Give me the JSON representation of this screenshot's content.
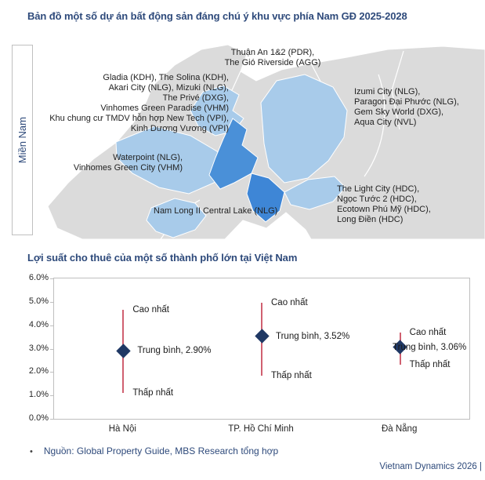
{
  "map_section": {
    "title": "Bản đồ một số dự án bất động sản đáng chú ý khu vực phía Nam GĐ 2025-2028",
    "region_label": "Miền Nam",
    "labels": {
      "thuan_an": {
        "lines": [
          "Thuận An 1&2 (PDR),",
          "The Gió Riverside (AGG)"
        ]
      },
      "west_hcm": {
        "lines": [
          "Gladia (KDH), The Solina (KDH),",
          "Akari City (NLG), Mizuki (NLG),",
          "The Privé (DXG),",
          "Vinhomes Green Paradise (VHM)",
          "Khu chung cư TMDV hỗn hợp New Tech (VPI),",
          "Kinh Dương Vương (VPI)"
        ]
      },
      "dong_nai": {
        "lines": [
          "Izumi City (NLG),",
          "Paragon Đại Phước (NLG),",
          "Gem Sky World (DXG),",
          "Aqua City (NVL)"
        ]
      },
      "long_an": {
        "lines": [
          "Waterpoint (NLG),",
          "Vinhomes Green City (VHM)"
        ]
      },
      "vung_tau": {
        "lines": [
          "The Light City (HDC),",
          "Ngọc Tước 2 (HDC),",
          "Ecotown Phú Mỹ (HDC),",
          "Long Điền (HDC)"
        ]
      },
      "nam_long": {
        "lines": [
          "Nam Long II Central Lake (NLG)"
        ]
      }
    },
    "map_colors": {
      "land": "#DBDBDB",
      "highlight_light": "#A8CBEA",
      "highlight_medium": "#4A90D8",
      "highlight_dark": "#3E86D6"
    }
  },
  "chart_data": {
    "type": "scatter",
    "title": "Lợi suất cho thuê của một số thành phố lớn tại Việt Nam",
    "categories": [
      "Hà Nội",
      "TP. Hồ Chí Minh",
      "Đà Nẵng"
    ],
    "ylabel": "",
    "xlabel": "",
    "ylim": [
      0,
      6
    ],
    "grid": false,
    "legend": false,
    "yticks": [
      {
        "value": 6,
        "label": "6.0%"
      },
      {
        "value": 5,
        "label": "5.0%"
      },
      {
        "value": 4,
        "label": "4.0%"
      },
      {
        "value": 3,
        "label": "3.0%"
      },
      {
        "value": 2,
        "label": "2.0%"
      },
      {
        "value": 1,
        "label": "1.0%"
      },
      {
        "value": 0,
        "label": "0.0%"
      }
    ],
    "series": [
      {
        "name": "Hà Nội",
        "mean": 2.9,
        "high": 4.65,
        "low": 1.1,
        "label_mean": "Trung bình, 2.90%",
        "label_high": "Cao nhất",
        "label_low": "Thấp nhất"
      },
      {
        "name": "TP. Hồ Chí Minh",
        "mean": 3.52,
        "high": 4.95,
        "low": 1.85,
        "label_mean": "Trung bình, 3.52%",
        "label_high": "Cao nhất",
        "label_low": "Thấp nhất"
      },
      {
        "name": "Đà Nẵng",
        "mean": 3.06,
        "high": 3.7,
        "low": 2.3,
        "label_mean": "Trung bình, 3.06%",
        "label_high": "Cao nhất",
        "label_low": "Thấp nhất"
      }
    ],
    "marker_color": "#1F3864",
    "whisker_color": "#D06070"
  },
  "footer": {
    "bullet": "•",
    "source": "Nguồn: Global Property Guide, MBS Research tổng hợp",
    "brand": "Vietnam Dynamics 2026 |"
  }
}
